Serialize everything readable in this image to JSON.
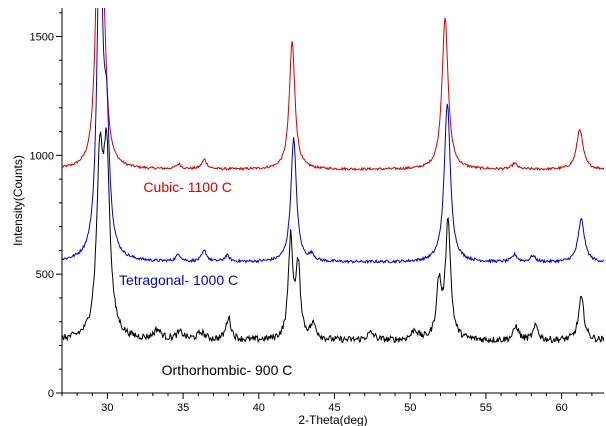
{
  "chart_data": {
    "type": "line",
    "title": "",
    "xlabel": "2-Theta(deg)",
    "ylabel": "Intensity(Counts)",
    "xlim": [
      27,
      62.8
    ],
    "ylim": [
      0,
      1620
    ],
    "x_ticks": [
      30,
      35,
      40,
      45,
      50,
      55,
      60
    ],
    "y_ticks": [
      0,
      500,
      1000,
      1500
    ],
    "grid": false,
    "legend": "none",
    "series": [
      {
        "name": "Cubic- 1100 C",
        "color": "#d40000",
        "baseline": 940,
        "noise": 5,
        "peaks": [
          {
            "x": 29.4,
            "h": 1000,
            "w": 0.22
          },
          {
            "x": 29.75,
            "h": 480,
            "w": 0.22
          },
          {
            "x": 34.7,
            "h": 20,
            "w": 0.2
          },
          {
            "x": 36.4,
            "h": 40,
            "w": 0.2
          },
          {
            "x": 42.2,
            "h": 540,
            "w": 0.22
          },
          {
            "x": 52.3,
            "h": 640,
            "w": 0.24
          },
          {
            "x": 56.9,
            "h": 25,
            "w": 0.2
          },
          {
            "x": 61.2,
            "h": 170,
            "w": 0.25
          }
        ]
      },
      {
        "name": "Tetragonal- 1000 C",
        "color": "#0000c8",
        "baseline": 550,
        "noise": 6,
        "peaks": [
          {
            "x": 29.5,
            "h": 1400,
            "w": 0.22
          },
          {
            "x": 29.95,
            "h": 500,
            "w": 0.22
          },
          {
            "x": 34.7,
            "h": 30,
            "w": 0.2
          },
          {
            "x": 36.4,
            "h": 45,
            "w": 0.2
          },
          {
            "x": 37.9,
            "h": 25,
            "w": 0.2
          },
          {
            "x": 42.3,
            "h": 520,
            "w": 0.22
          },
          {
            "x": 43.5,
            "h": 25,
            "w": 0.2
          },
          {
            "x": 52.45,
            "h": 670,
            "w": 0.24
          },
          {
            "x": 56.9,
            "h": 30,
            "w": 0.2
          },
          {
            "x": 58.1,
            "h": 25,
            "w": 0.2
          },
          {
            "x": 61.3,
            "h": 180,
            "w": 0.25
          }
        ]
      },
      {
        "name": "Orthorhombic- 900 C",
        "color": "#000000",
        "baseline": 220,
        "noise": 14,
        "peaks": [
          {
            "x": 29.5,
            "h": 700,
            "w": 0.25
          },
          {
            "x": 29.95,
            "h": 720,
            "w": 0.25
          },
          {
            "x": 33.3,
            "h": 40,
            "w": 0.3
          },
          {
            "x": 34.8,
            "h": 30,
            "w": 0.3
          },
          {
            "x": 36.2,
            "h": 30,
            "w": 0.3
          },
          {
            "x": 38.0,
            "h": 95,
            "w": 0.2
          },
          {
            "x": 42.1,
            "h": 420,
            "w": 0.18
          },
          {
            "x": 42.6,
            "h": 300,
            "w": 0.18
          },
          {
            "x": 43.6,
            "h": 60,
            "w": 0.25
          },
          {
            "x": 47.4,
            "h": 30,
            "w": 0.3
          },
          {
            "x": 50.3,
            "h": 40,
            "w": 0.25
          },
          {
            "x": 51.9,
            "h": 230,
            "w": 0.2
          },
          {
            "x": 52.5,
            "h": 500,
            "w": 0.2
          },
          {
            "x": 57.0,
            "h": 60,
            "w": 0.2
          },
          {
            "x": 58.3,
            "h": 60,
            "w": 0.2
          },
          {
            "x": 61.3,
            "h": 180,
            "w": 0.22
          }
        ]
      }
    ],
    "annotations": [
      {
        "text": "Cubic- 1100 C",
        "x": 35.3,
        "y": 845,
        "color": "#d40000"
      },
      {
        "text": "Tetragonal- 1000 C",
        "x": 34.7,
        "y": 455,
        "color": "#0000c8"
      },
      {
        "text": "Orthorhombic- 900 C",
        "x": 37.9,
        "y": 75,
        "color": "#000000"
      }
    ]
  }
}
